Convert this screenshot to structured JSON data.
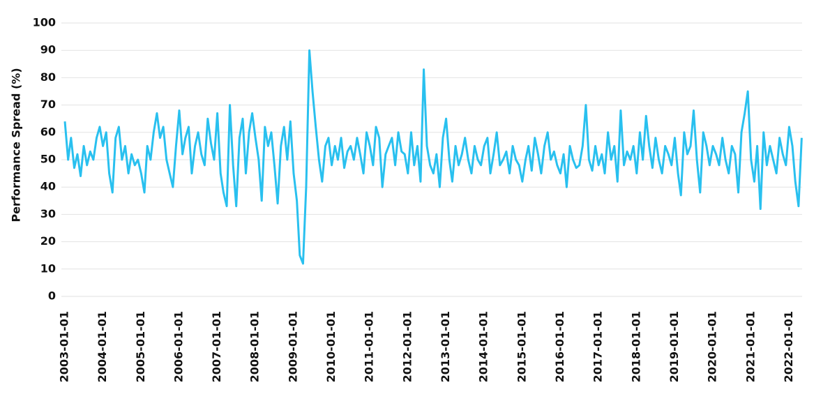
{
  "chart_data": {
    "type": "line",
    "y_label": "Performance Spread (%)",
    "x": [
      "2003-01-01",
      "2003-02-01",
      "2003-03-01",
      "2003-04-01",
      "2003-05-01",
      "2003-06-01",
      "2003-07-01",
      "2003-08-01",
      "2003-09-01",
      "2003-10-01",
      "2003-11-01",
      "2003-12-01",
      "2004-01-01",
      "2004-02-01",
      "2004-03-01",
      "2004-04-01",
      "2004-05-01",
      "2004-06-01",
      "2004-07-01",
      "2004-08-01",
      "2004-09-01",
      "2004-10-01",
      "2004-11-01",
      "2004-12-01",
      "2005-01-01",
      "2005-02-01",
      "2005-03-01",
      "2005-04-01",
      "2005-05-01",
      "2005-06-01",
      "2005-07-01",
      "2005-08-01",
      "2005-09-01",
      "2005-10-01",
      "2005-11-01",
      "2005-12-01",
      "2006-01-01",
      "2006-02-01",
      "2006-03-01",
      "2006-04-01",
      "2006-05-01",
      "2006-06-01",
      "2006-07-01",
      "2006-08-01",
      "2006-09-01",
      "2006-10-01",
      "2006-11-01",
      "2006-12-01",
      "2007-01-01",
      "2007-02-01",
      "2007-03-01",
      "2007-04-01",
      "2007-05-01",
      "2007-06-01",
      "2007-07-01",
      "2007-08-01",
      "2007-09-01",
      "2007-10-01",
      "2007-11-01",
      "2007-12-01",
      "2008-01-01",
      "2008-02-01",
      "2008-03-01",
      "2008-04-01",
      "2008-05-01",
      "2008-06-01",
      "2008-07-01",
      "2008-08-01",
      "2008-09-01",
      "2008-10-01",
      "2008-11-01",
      "2008-12-01",
      "2009-01-01",
      "2009-02-01",
      "2009-03-01",
      "2009-04-01",
      "2009-05-01",
      "2009-06-01",
      "2009-07-01",
      "2009-08-01",
      "2009-09-01",
      "2009-10-01",
      "2009-11-01",
      "2009-12-01",
      "2010-01-01",
      "2010-02-01",
      "2010-03-01",
      "2010-04-01",
      "2010-05-01",
      "2010-06-01",
      "2010-07-01",
      "2010-08-01",
      "2010-09-01",
      "2010-10-01",
      "2010-11-01",
      "2010-12-01",
      "2011-01-01",
      "2011-02-01",
      "2011-03-01",
      "2011-04-01",
      "2011-05-01",
      "2011-06-01",
      "2011-07-01",
      "2011-08-01",
      "2011-09-01",
      "2011-10-01",
      "2011-11-01",
      "2011-12-01",
      "2012-01-01",
      "2012-02-01",
      "2012-03-01",
      "2012-04-01",
      "2012-05-01",
      "2012-06-01",
      "2012-07-01",
      "2012-08-01",
      "2012-09-01",
      "2012-10-01",
      "2012-11-01",
      "2012-12-01",
      "2013-01-01",
      "2013-02-01",
      "2013-03-01",
      "2013-04-01",
      "2013-05-01",
      "2013-06-01",
      "2013-07-01",
      "2013-08-01",
      "2013-09-01",
      "2013-10-01",
      "2013-11-01",
      "2013-12-01",
      "2014-01-01",
      "2014-02-01",
      "2014-03-01",
      "2014-04-01",
      "2014-05-01",
      "2014-06-01",
      "2014-07-01",
      "2014-08-01",
      "2014-09-01",
      "2014-10-01",
      "2014-11-01",
      "2014-12-01",
      "2015-01-01",
      "2015-02-01",
      "2015-03-01",
      "2015-04-01",
      "2015-05-01",
      "2015-06-01",
      "2015-07-01",
      "2015-08-01",
      "2015-09-01",
      "2015-10-01",
      "2015-11-01",
      "2015-12-01",
      "2016-01-01",
      "2016-02-01",
      "2016-03-01",
      "2016-04-01",
      "2016-05-01",
      "2016-06-01",
      "2016-07-01",
      "2016-08-01",
      "2016-09-01",
      "2016-10-01",
      "2016-11-01",
      "2016-12-01",
      "2017-01-01",
      "2017-02-01",
      "2017-03-01",
      "2017-04-01",
      "2017-05-01",
      "2017-06-01",
      "2017-07-01",
      "2017-08-01",
      "2017-09-01",
      "2017-10-01",
      "2017-11-01",
      "2017-12-01",
      "2018-01-01",
      "2018-02-01",
      "2018-03-01",
      "2018-04-01",
      "2018-05-01",
      "2018-06-01",
      "2018-07-01",
      "2018-08-01",
      "2018-09-01",
      "2018-10-01",
      "2018-11-01",
      "2018-12-01",
      "2019-01-01",
      "2019-02-01",
      "2019-03-01",
      "2019-04-01",
      "2019-05-01",
      "2019-06-01",
      "2019-07-01",
      "2019-08-01",
      "2019-09-01",
      "2019-10-01",
      "2019-11-01",
      "2019-12-01",
      "2020-01-01",
      "2020-02-01",
      "2020-03-01",
      "2020-04-01",
      "2020-05-01",
      "2020-06-01",
      "2020-07-01",
      "2020-08-01",
      "2020-09-01",
      "2020-10-01",
      "2020-11-01",
      "2020-12-01",
      "2021-01-01",
      "2021-02-01",
      "2021-03-01",
      "2021-04-01",
      "2021-05-01",
      "2021-06-01",
      "2021-07-01",
      "2021-08-01",
      "2021-09-01",
      "2021-10-01",
      "2021-11-01",
      "2021-12-01",
      "2022-01-01",
      "2022-02-01",
      "2022-03-01",
      "2022-04-01",
      "2022-05-01"
    ],
    "values": [
      64,
      50,
      58,
      47,
      52,
      44,
      55,
      48,
      53,
      50,
      58,
      62,
      55,
      60,
      45,
      38,
      58,
      62,
      50,
      55,
      45,
      52,
      48,
      50,
      45,
      38,
      55,
      50,
      60,
      67,
      58,
      62,
      50,
      45,
      40,
      55,
      68,
      52,
      58,
      62,
      45,
      55,
      60,
      52,
      48,
      65,
      56,
      50,
      67,
      45,
      38,
      33,
      70,
      48,
      33,
      58,
      65,
      45,
      60,
      67,
      58,
      50,
      35,
      62,
      55,
      60,
      48,
      34,
      55,
      62,
      50,
      64,
      45,
      35,
      15,
      12,
      40,
      90,
      75,
      62,
      50,
      42,
      55,
      58,
      48,
      55,
      50,
      58,
      47,
      53,
      55,
      50,
      58,
      52,
      45,
      60,
      55,
      48,
      62,
      58,
      40,
      52,
      55,
      58,
      48,
      60,
      53,
      52,
      45,
      60,
      48,
      55,
      42,
      83,
      55,
      48,
      45,
      52,
      40,
      58,
      65,
      50,
      42,
      55,
      48,
      52,
      58,
      50,
      45,
      55,
      50,
      48,
      55,
      58,
      45,
      52,
      60,
      48,
      50,
      53,
      45,
      55,
      50,
      48,
      42,
      50,
      55,
      46,
      58,
      52,
      45,
      55,
      60,
      50,
      53,
      48,
      45,
      52,
      40,
      55,
      50,
      47,
      48,
      55,
      70,
      50,
      46,
      55,
      48,
      52,
      45,
      60,
      50,
      55,
      42,
      68,
      48,
      53,
      50,
      55,
      45,
      60,
      50,
      66,
      55,
      47,
      58,
      50,
      45,
      55,
      52,
      48,
      58,
      45,
      37,
      60,
      52,
      55,
      68,
      50,
      38,
      60,
      55,
      48,
      55,
      52,
      48,
      58,
      50,
      45,
      55,
      52,
      38,
      60,
      67,
      75,
      50,
      42,
      55,
      32,
      60,
      48,
      55,
      50,
      45,
      58,
      52,
      48,
      62,
      55,
      42,
      33,
      58
    ],
    "color": "#29c0ef",
    "xlim": [
      "2003-01-01",
      "2022-06-01"
    ],
    "xticks": [
      "2003-01-01",
      "2004-01-01",
      "2005-01-01",
      "2006-01-01",
      "2007-01-01",
      "2008-01-01",
      "2009-01-01",
      "2010-01-01",
      "2011-01-01",
      "2012-01-01",
      "2013-01-01",
      "2014-01-01",
      "2015-01-01",
      "2016-01-01",
      "2017-01-01",
      "2018-01-01",
      "2019-01-01",
      "2020-01-01",
      "2021-01-01",
      "2022-01-01"
    ],
    "ylim": [
      0,
      100
    ],
    "yticks": [
      0,
      10,
      20,
      30,
      40,
      50,
      60,
      70,
      80,
      90,
      100
    ],
    "grid": true
  }
}
